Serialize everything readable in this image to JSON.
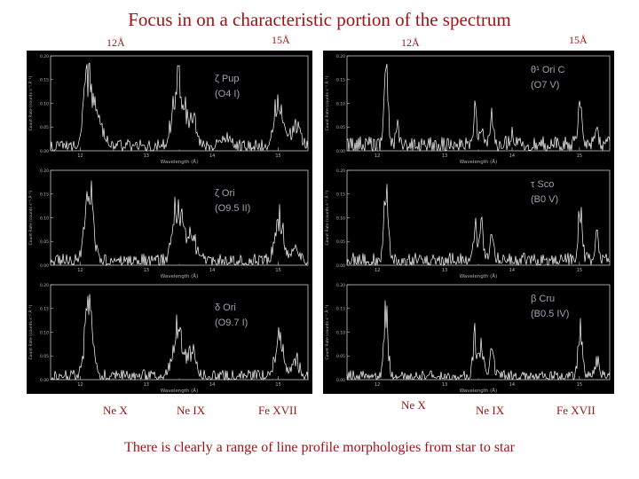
{
  "slide": {
    "title": "Focus in on a characteristic portion of the spectrum",
    "caption": "There is clearly a range of line profile morphologies from star to star",
    "accent_color": "#991414",
    "panel_background": "#000000",
    "spectrum_color": "#ffffff",
    "star_label_color": "#a2a2b2"
  },
  "wavelength_labels": [
    "12Å",
    "15Å",
    "12Å",
    "15Å"
  ],
  "ion_labels": [
    "Ne X",
    "Ne IX",
    "Fe XVII"
  ],
  "chart_data": [
    {
      "type": "line",
      "star": "ζ Pup",
      "spectral_type": "(O4 I)",
      "xlabel": "Wavelength (Å)",
      "ylabel": "Count Rate (counts s⁻¹ Å⁻¹)",
      "xlim": [
        11.55,
        15.45
      ],
      "x_ticks": [
        12,
        13,
        14,
        15
      ],
      "ylim": [
        0,
        0.2
      ],
      "y_ticks": [
        0,
        0.05,
        0.1,
        0.15,
        0.2
      ],
      "noise": 0.1,
      "line_width": 0.07,
      "seed": 11,
      "peaks": [
        {
          "x": 12.13,
          "h": 0.95,
          "label": "Ne X"
        },
        {
          "x": 12.3,
          "h": 0.25
        },
        {
          "x": 13.45,
          "h": 0.55,
          "label": "Ne IX"
        },
        {
          "x": 13.55,
          "h": 0.4
        },
        {
          "x": 13.7,
          "h": 0.3
        },
        {
          "x": 14.21,
          "h": 0.12
        },
        {
          "x": 15.01,
          "h": 0.5,
          "label": "Fe XVII"
        },
        {
          "x": 15.26,
          "h": 0.25
        }
      ]
    },
    {
      "type": "line",
      "star": "ζ Ori",
      "spectral_type": "(O9.5 II)",
      "xlabel": "Wavelength (Å)",
      "ylabel": "Count Rate (counts s⁻¹ Å⁻¹)",
      "xlim": [
        11.55,
        15.45
      ],
      "x_ticks": [
        12,
        13,
        14,
        15
      ],
      "ylim": [
        0,
        0.2
      ],
      "y_ticks": [
        0,
        0.05,
        0.1,
        0.15,
        0.2
      ],
      "noise": 0.1,
      "line_width": 0.06,
      "seed": 33,
      "peaks": [
        {
          "x": 12.13,
          "h": 0.9,
          "label": "Ne X"
        },
        {
          "x": 13.45,
          "h": 0.5,
          "label": "Ne IX"
        },
        {
          "x": 13.55,
          "h": 0.35
        },
        {
          "x": 13.7,
          "h": 0.28
        },
        {
          "x": 15.01,
          "h": 0.55,
          "label": "Fe XVII"
        },
        {
          "x": 15.26,
          "h": 0.2
        }
      ]
    },
    {
      "type": "line",
      "star": "δ Ori",
      "spectral_type": "(O9.7 I)",
      "xlabel": "Wavelength (Å)",
      "ylabel": "Count Rate (counts s⁻¹ Å⁻¹)",
      "xlim": [
        11.55,
        15.45
      ],
      "x_ticks": [
        12,
        13,
        14,
        15
      ],
      "ylim": [
        0,
        0.2
      ],
      "y_ticks": [
        0,
        0.05,
        0.1,
        0.15,
        0.2
      ],
      "noise": 0.09,
      "line_width": 0.055,
      "seed": 55,
      "peaks": [
        {
          "x": 12.13,
          "h": 0.95,
          "label": "Ne X"
        },
        {
          "x": 13.45,
          "h": 0.45,
          "label": "Ne IX"
        },
        {
          "x": 13.55,
          "h": 0.3
        },
        {
          "x": 13.7,
          "h": 0.25
        },
        {
          "x": 15.01,
          "h": 0.5,
          "label": "Fe XVII"
        },
        {
          "x": 15.26,
          "h": 0.2
        }
      ]
    },
    {
      "type": "line",
      "star": "θ¹ Ori C",
      "spectral_type": "(O7 V)",
      "xlabel": "Wavelength (Å)",
      "ylabel": "Count Rate (counts s⁻¹ Å⁻¹)",
      "xlim": [
        11.55,
        15.45
      ],
      "x_ticks": [
        12,
        13,
        14,
        15
      ],
      "ylim": [
        0,
        0.2
      ],
      "y_ticks": [
        0,
        0.05,
        0.1,
        0.15,
        0.2
      ],
      "noise": 0.13,
      "line_width": 0.025,
      "seed": 22,
      "peaks": [
        {
          "x": 12.13,
          "h": 1.0,
          "label": "Ne X"
        },
        {
          "x": 12.3,
          "h": 0.2
        },
        {
          "x": 13.45,
          "h": 0.45,
          "label": "Ne IX"
        },
        {
          "x": 13.55,
          "h": 0.35
        },
        {
          "x": 13.7,
          "h": 0.3
        },
        {
          "x": 14.0,
          "h": 0.15
        },
        {
          "x": 15.01,
          "h": 0.6,
          "label": "Fe XVII"
        },
        {
          "x": 15.26,
          "h": 0.25
        }
      ]
    },
    {
      "type": "line",
      "star": "τ Sco",
      "spectral_type": "(B0 V)",
      "xlabel": "Wavelength (Å)",
      "ylabel": "Count Rate (counts s⁻¹ Å⁻¹)",
      "xlim": [
        11.55,
        15.45
      ],
      "x_ticks": [
        12,
        13,
        14,
        15
      ],
      "ylim": [
        0,
        0.2
      ],
      "y_ticks": [
        0,
        0.05,
        0.1,
        0.15,
        0.2
      ],
      "noise": 0.11,
      "line_width": 0.03,
      "seed": 44,
      "peaks": [
        {
          "x": 12.13,
          "h": 0.9,
          "label": "Ne X"
        },
        {
          "x": 13.45,
          "h": 0.5,
          "label": "Ne IX"
        },
        {
          "x": 13.55,
          "h": 0.4
        },
        {
          "x": 13.7,
          "h": 0.3
        },
        {
          "x": 15.01,
          "h": 0.65,
          "label": "Fe XVII"
        },
        {
          "x": 15.26,
          "h": 0.25
        }
      ]
    },
    {
      "type": "line",
      "star": "β Cru",
      "spectral_type": "(B0.5 IV)",
      "xlabel": "Wavelength (Å)",
      "ylabel": "Count Rate (counts s⁻¹ Å⁻¹)",
      "xlim": [
        11.55,
        15.45
      ],
      "x_ticks": [
        12,
        13,
        14,
        15
      ],
      "ylim": [
        0,
        0.2
      ],
      "y_ticks": [
        0,
        0.05,
        0.1,
        0.15,
        0.2
      ],
      "noise": 0.08,
      "line_width": 0.03,
      "seed": 66,
      "peaks": [
        {
          "x": 12.13,
          "h": 0.75,
          "label": "Ne X"
        },
        {
          "x": 13.45,
          "h": 0.5,
          "label": "Ne IX"
        },
        {
          "x": 13.55,
          "h": 0.35
        },
        {
          "x": 13.7,
          "h": 0.3
        },
        {
          "x": 15.01,
          "h": 0.55,
          "label": "Fe XVII"
        },
        {
          "x": 15.26,
          "h": 0.2
        }
      ]
    }
  ]
}
